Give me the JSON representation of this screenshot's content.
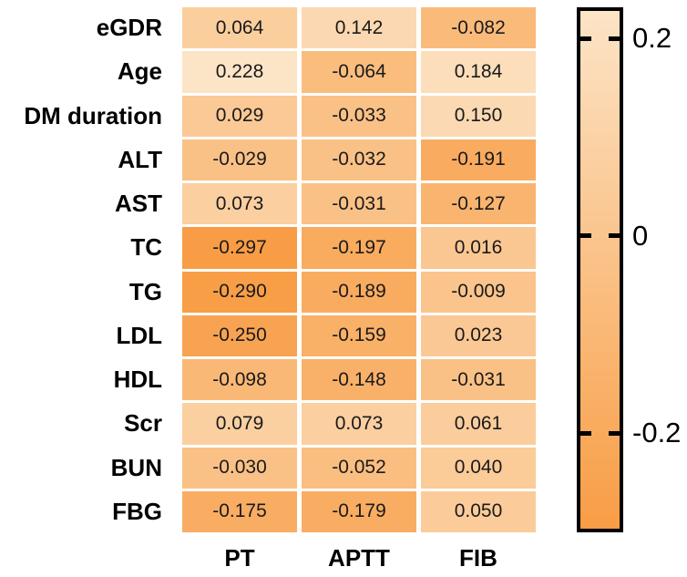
{
  "figure": {
    "background": "#ffffff",
    "cell_text_color": "#1a1a1a",
    "label_color": "#000000"
  },
  "chart_data": {
    "type": "heatmap",
    "description": "Correlation heatmap of clinical variables vs coagulation markers",
    "rows": [
      "eGDR",
      "Age",
      "DM duration",
      "ALT",
      "AST",
      "TC",
      "TG",
      "LDL",
      "HDL",
      "Scr",
      "BUN",
      "FBG"
    ],
    "columns": [
      "PT",
      "APTT",
      "FIB"
    ],
    "values": [
      [
        "0.064",
        "0.142",
        "-0.082"
      ],
      [
        "0.228",
        "-0.064",
        "0.184"
      ],
      [
        "0.029",
        "-0.033",
        "0.150"
      ],
      [
        "-0.029",
        "-0.032",
        "-0.191"
      ],
      [
        "0.073",
        "-0.031",
        "-0.127"
      ],
      [
        "-0.297",
        "-0.197",
        "0.016"
      ],
      [
        "-0.290",
        "-0.189",
        "-0.009"
      ],
      [
        "-0.250",
        "-0.159",
        "0.023"
      ],
      [
        "-0.098",
        "-0.148",
        "-0.031"
      ],
      [
        "0.079",
        "0.073",
        "0.061"
      ],
      [
        "-0.030",
        "-0.052",
        "0.040"
      ],
      [
        "-0.175",
        "-0.179",
        "0.050"
      ]
    ],
    "colorbar": {
      "position": "right",
      "tick_labels": [
        "0.2",
        "0",
        "-0.2"
      ],
      "tick_values": [
        0.2,
        0,
        -0.2
      ],
      "color_high": "#FCE4C6",
      "color_low": "#F89D45",
      "border_color": "#000000"
    },
    "grid_gap_color": "#ffffff"
  }
}
